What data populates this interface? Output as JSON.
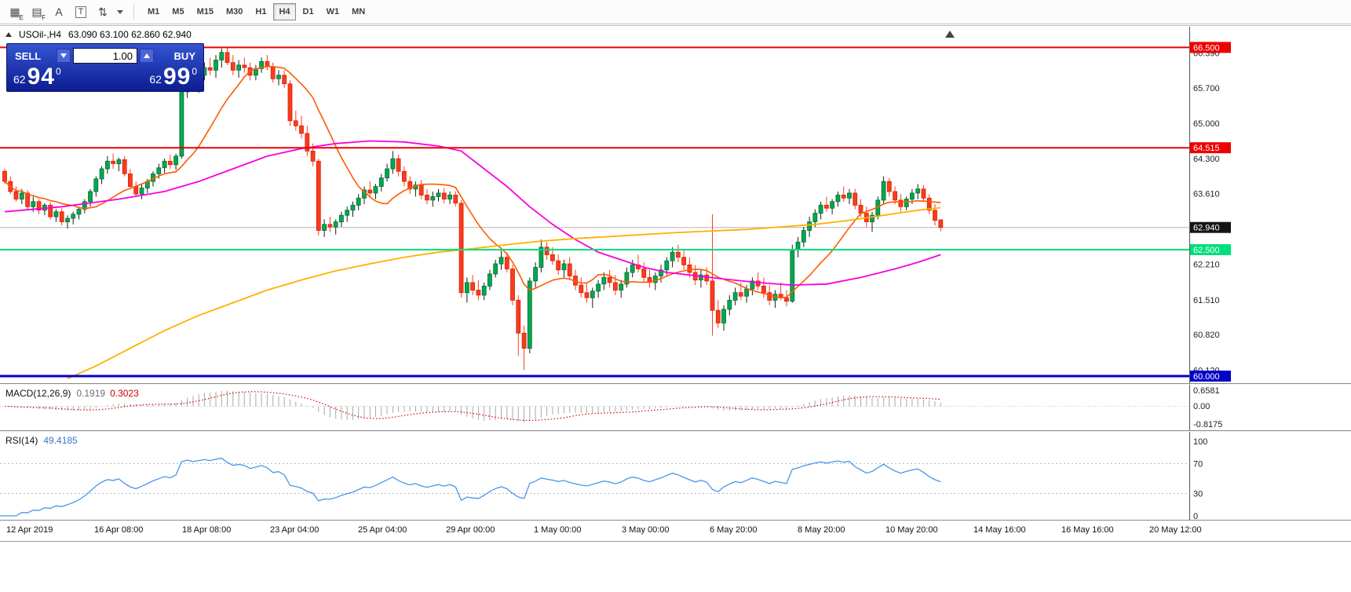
{
  "toolbar": {
    "tools": [
      {
        "glyph": "▦",
        "sub": "E"
      },
      {
        "glyph": "▤",
        "sub": "F"
      },
      {
        "glyph": "A",
        "sub": ""
      },
      {
        "glyph": "T",
        "sub": ""
      },
      {
        "glyph": "⇅",
        "sub": ""
      }
    ],
    "timeframes": [
      {
        "label": "M1"
      },
      {
        "label": "M5"
      },
      {
        "label": "M15"
      },
      {
        "label": "M30"
      },
      {
        "label": "H1"
      },
      {
        "label": "H4",
        "active": true
      },
      {
        "label": "D1"
      },
      {
        "label": "W1"
      },
      {
        "label": "MN"
      }
    ]
  },
  "chart": {
    "symbol": "USOil-,H4",
    "ohlc": "63.090 63.100 62.860 62.940",
    "trade_panel": {
      "sell_label": "SELL",
      "buy_label": "BUY",
      "volume": "1.00",
      "sell_price": {
        "small": "62",
        "big": "94",
        "sup": "0"
      },
      "buy_price": {
        "small": "62",
        "big": "99",
        "sup": "0"
      }
    }
  },
  "chart_data": {
    "type": "candlestick",
    "symbol": "USOil-",
    "timeframe": "H4",
    "style": {
      "up_fill": "#00a94f",
      "up_stroke": "#056b33",
      "up_wick": "#1e1e1e",
      "down_fill": "#fa3b1d",
      "down_stroke": "#d6230a",
      "down_wick": "#fa3b1d"
    },
    "candles": [
      [
        64.05,
        64.1,
        63.8,
        63.85
      ],
      [
        63.85,
        63.95,
        63.6,
        63.65
      ],
      [
        63.65,
        63.75,
        63.45,
        63.5
      ],
      [
        63.5,
        63.7,
        63.4,
        63.62
      ],
      [
        63.62,
        63.68,
        63.3,
        63.35
      ],
      [
        63.35,
        63.55,
        63.25,
        63.45
      ],
      [
        63.45,
        63.5,
        63.2,
        63.28
      ],
      [
        63.28,
        63.42,
        63.18,
        63.38
      ],
      [
        63.38,
        63.44,
        63.1,
        63.15
      ],
      [
        63.15,
        63.3,
        63.05,
        63.25
      ],
      [
        63.25,
        63.32,
        62.98,
        63.05
      ],
      [
        63.05,
        63.18,
        62.92,
        63.12
      ],
      [
        63.12,
        63.25,
        63,
        63.2
      ],
      [
        63.2,
        63.35,
        63.1,
        63.3
      ],
      [
        63.3,
        63.5,
        63.22,
        63.45
      ],
      [
        63.45,
        63.7,
        63.35,
        63.65
      ],
      [
        63.65,
        63.95,
        63.55,
        63.9
      ],
      [
        63.9,
        64.15,
        63.8,
        64.1
      ],
      [
        64.1,
        64.35,
        64,
        64.25
      ],
      [
        64.25,
        64.4,
        64.1,
        64.2
      ],
      [
        64.2,
        64.32,
        64.05,
        64.28
      ],
      [
        64.28,
        64.35,
        63.95,
        64
      ],
      [
        64,
        64.1,
        63.7,
        63.75
      ],
      [
        63.75,
        63.85,
        63.55,
        63.6
      ],
      [
        63.6,
        63.8,
        63.5,
        63.72
      ],
      [
        63.72,
        63.9,
        63.62,
        63.85
      ],
      [
        63.85,
        64.05,
        63.75,
        64
      ],
      [
        64,
        64.2,
        63.9,
        64.12
      ],
      [
        64.12,
        64.3,
        64.02,
        64.25
      ],
      [
        64.25,
        64.38,
        64.1,
        64.18
      ],
      [
        64.18,
        64.4,
        64.08,
        64.35
      ],
      [
        64.35,
        65.7,
        64.3,
        65.62
      ],
      [
        65.62,
        65.95,
        65.5,
        65.88
      ],
      [
        65.88,
        66.1,
        65.7,
        65.8
      ],
      [
        65.8,
        66,
        65.6,
        65.95
      ],
      [
        65.95,
        66.2,
        65.85,
        66.1
      ],
      [
        66.1,
        66.3,
        65.95,
        66.05
      ],
      [
        66.05,
        66.35,
        65.9,
        66.25
      ],
      [
        66.25,
        66.48,
        66.1,
        66.4
      ],
      [
        66.4,
        66.5,
        66.15,
        66.2
      ],
      [
        66.2,
        66.35,
        65.95,
        66.05
      ],
      [
        66.05,
        66.25,
        65.9,
        66.15
      ],
      [
        66.15,
        66.3,
        66,
        66.1
      ],
      [
        66.1,
        66.2,
        65.85,
        65.95
      ],
      [
        65.95,
        66.15,
        65.85,
        66.08
      ],
      [
        66.08,
        66.3,
        66,
        66.22
      ],
      [
        66.22,
        66.35,
        66.05,
        66.12
      ],
      [
        66.12,
        66.2,
        65.8,
        65.88
      ],
      [
        65.88,
        66.05,
        65.75,
        65.95
      ],
      [
        65.95,
        66.05,
        65.7,
        65.78
      ],
      [
        65.78,
        65.85,
        64.95,
        65.05
      ],
      [
        65.05,
        65.25,
        64.85,
        64.95
      ],
      [
        64.95,
        65.15,
        64.7,
        64.8
      ],
      [
        64.8,
        64.95,
        64.35,
        64.45
      ],
      [
        64.45,
        64.6,
        64.15,
        64.25
      ],
      [
        64.25,
        64.3,
        62.78,
        62.88
      ],
      [
        62.88,
        63.1,
        62.75,
        63
      ],
      [
        63,
        63.15,
        62.85,
        62.95
      ],
      [
        62.95,
        63.1,
        62.8,
        63.05
      ],
      [
        63.05,
        63.25,
        62.95,
        63.18
      ],
      [
        63.18,
        63.35,
        63.05,
        63.28
      ],
      [
        63.28,
        63.45,
        63.15,
        63.38
      ],
      [
        63.38,
        63.6,
        63.28,
        63.52
      ],
      [
        63.52,
        63.75,
        63.4,
        63.68
      ],
      [
        63.68,
        63.85,
        63.55,
        63.62
      ],
      [
        63.62,
        63.8,
        63.5,
        63.75
      ],
      [
        63.75,
        64,
        63.65,
        63.92
      ],
      [
        63.92,
        64.2,
        63.85,
        64.1
      ],
      [
        64.1,
        64.45,
        64,
        64.3
      ],
      [
        64.3,
        64.38,
        63.95,
        64.05
      ],
      [
        64.05,
        64.15,
        63.75,
        63.85
      ],
      [
        63.85,
        63.95,
        63.6,
        63.7
      ],
      [
        63.7,
        63.85,
        63.55,
        63.78
      ],
      [
        63.78,
        63.88,
        63.5,
        63.58
      ],
      [
        63.58,
        63.7,
        63.4,
        63.48
      ],
      [
        63.48,
        63.65,
        63.35,
        63.55
      ],
      [
        63.55,
        63.7,
        63.45,
        63.62
      ],
      [
        63.62,
        63.72,
        63.42,
        63.5
      ],
      [
        63.5,
        63.65,
        63.4,
        63.58
      ],
      [
        63.58,
        63.65,
        63.35,
        63.42
      ],
      [
        63.42,
        63.48,
        61.55,
        61.65
      ],
      [
        61.65,
        61.95,
        61.45,
        61.85
      ],
      [
        61.85,
        62,
        61.6,
        61.7
      ],
      [
        61.7,
        61.9,
        61.5,
        61.6
      ],
      [
        61.6,
        61.85,
        61.5,
        61.78
      ],
      [
        61.78,
        62.1,
        61.7,
        62.02
      ],
      [
        62.02,
        62.3,
        61.95,
        62.22
      ],
      [
        62.22,
        62.48,
        62.1,
        62.35
      ],
      [
        62.35,
        62.45,
        62.05,
        62.12
      ],
      [
        62.12,
        62.2,
        61.4,
        61.5
      ],
      [
        61.5,
        61.6,
        60.4,
        60.85
      ],
      [
        60.85,
        61,
        60.12,
        60.55
      ],
      [
        60.55,
        61.95,
        60.45,
        61.88
      ],
      [
        61.88,
        62.25,
        61.75,
        62.15
      ],
      [
        62.15,
        62.7,
        62.05,
        62.55
      ],
      [
        62.55,
        62.65,
        62.3,
        62.4
      ],
      [
        62.4,
        62.55,
        62.2,
        62.28
      ],
      [
        62.28,
        62.4,
        62,
        62.1
      ],
      [
        62.1,
        62.3,
        61.95,
        62.22
      ],
      [
        62.22,
        62.35,
        61.9,
        61.98
      ],
      [
        61.98,
        62.1,
        61.7,
        61.8
      ],
      [
        61.8,
        61.95,
        61.55,
        61.65
      ],
      [
        61.65,
        61.85,
        61.45,
        61.55
      ],
      [
        61.55,
        61.75,
        61.35,
        61.68
      ],
      [
        61.68,
        61.9,
        61.55,
        61.82
      ],
      [
        61.82,
        62.05,
        61.7,
        61.95
      ],
      [
        61.95,
        62.1,
        61.75,
        61.85
      ],
      [
        61.85,
        62,
        61.6,
        61.7
      ],
      [
        61.7,
        61.9,
        61.55,
        61.82
      ],
      [
        61.82,
        62.15,
        61.75,
        62.05
      ],
      [
        62.05,
        62.3,
        61.95,
        62.2
      ],
      [
        62.2,
        62.4,
        62.05,
        62.12
      ],
      [
        62.12,
        62.25,
        61.85,
        61.95
      ],
      [
        61.95,
        62.1,
        61.75,
        61.85
      ],
      [
        61.85,
        62.05,
        61.7,
        61.98
      ],
      [
        61.98,
        62.2,
        61.85,
        62.1
      ],
      [
        62.1,
        62.35,
        62,
        62.28
      ],
      [
        62.28,
        62.55,
        62.15,
        62.45
      ],
      [
        62.45,
        62.6,
        62.25,
        62.35
      ],
      [
        62.35,
        62.5,
        62.1,
        62.2
      ],
      [
        62.2,
        62.35,
        61.95,
        62.05
      ],
      [
        62.05,
        62.2,
        61.8,
        61.9
      ],
      [
        61.9,
        62.1,
        61.75,
        62
      ],
      [
        62,
        62.15,
        61.8,
        61.88
      ],
      [
        61.88,
        63.2,
        60.8,
        61.3
      ],
      [
        61.3,
        61.5,
        60.95,
        61.05
      ],
      [
        61.05,
        61.4,
        60.9,
        61.32
      ],
      [
        61.32,
        61.6,
        61.2,
        61.5
      ],
      [
        61.5,
        61.75,
        61.4,
        61.65
      ],
      [
        61.65,
        61.85,
        61.5,
        61.58
      ],
      [
        61.58,
        61.8,
        61.45,
        61.72
      ],
      [
        61.72,
        61.95,
        61.6,
        61.88
      ],
      [
        61.88,
        62.05,
        61.7,
        61.78
      ],
      [
        61.78,
        61.95,
        61.55,
        61.65
      ],
      [
        61.65,
        61.8,
        61.4,
        61.5
      ],
      [
        61.5,
        61.7,
        61.35,
        61.62
      ],
      [
        61.62,
        61.85,
        61.5,
        61.55
      ],
      [
        61.55,
        61.7,
        61.38,
        61.48
      ],
      [
        61.48,
        62.6,
        61.45,
        62.5
      ],
      [
        62.5,
        62.75,
        62.35,
        62.65
      ],
      [
        62.65,
        62.95,
        62.55,
        62.88
      ],
      [
        62.88,
        63.15,
        62.75,
        63.05
      ],
      [
        63.05,
        63.3,
        62.95,
        63.22
      ],
      [
        63.22,
        63.45,
        63.1,
        63.38
      ],
      [
        63.38,
        63.55,
        63.25,
        63.32
      ],
      [
        63.32,
        63.5,
        63.2,
        63.45
      ],
      [
        63.45,
        63.65,
        63.35,
        63.58
      ],
      [
        63.58,
        63.75,
        63.45,
        63.52
      ],
      [
        63.52,
        63.7,
        63.4,
        63.62
      ],
      [
        63.62,
        63.7,
        63.3,
        63.38
      ],
      [
        63.38,
        63.5,
        63.15,
        63.22
      ],
      [
        63.22,
        63.35,
        62.95,
        63.05
      ],
      [
        63.05,
        63.25,
        62.85,
        63.18
      ],
      [
        63.18,
        63.55,
        63.1,
        63.48
      ],
      [
        63.48,
        63.95,
        63.4,
        63.85
      ],
      [
        63.85,
        63.92,
        63.55,
        63.65
      ],
      [
        63.65,
        63.75,
        63.4,
        63.48
      ],
      [
        63.48,
        63.6,
        63.25,
        63.35
      ],
      [
        63.35,
        63.55,
        63.28,
        63.5
      ],
      [
        63.5,
        63.7,
        63.4,
        63.62
      ],
      [
        63.62,
        63.8,
        63.5,
        63.7
      ],
      [
        63.7,
        63.78,
        63.45,
        63.52
      ],
      [
        63.52,
        63.6,
        63.2,
        63.28
      ],
      [
        63.28,
        63.4,
        62.98,
        63.08
      ],
      [
        63.09,
        63.1,
        62.86,
        62.94
      ]
    ],
    "ma": {
      "fast": {
        "period": 13,
        "color": "#ff5a00"
      },
      "mid": {
        "color": "#f800e0",
        "points": [
          [
            0,
            63.25
          ],
          [
            10,
            63.35
          ],
          [
            20,
            63.5
          ],
          [
            28,
            63.65
          ],
          [
            34,
            63.85
          ],
          [
            40,
            64.1
          ],
          [
            46,
            64.35
          ],
          [
            52,
            64.5
          ],
          [
            58,
            64.6
          ],
          [
            64,
            64.65
          ],
          [
            70,
            64.63
          ],
          [
            76,
            64.55
          ],
          [
            80,
            64.45
          ],
          [
            84,
            64.1
          ],
          [
            88,
            63.75
          ],
          [
            92,
            63.35
          ],
          [
            96,
            63.0
          ],
          [
            100,
            62.7
          ],
          [
            104,
            62.45
          ],
          [
            108,
            62.3
          ],
          [
            112,
            62.15
          ],
          [
            116,
            62.05
          ],
          [
            120,
            62.0
          ],
          [
            126,
            61.92
          ],
          [
            132,
            61.85
          ],
          [
            138,
            61.8
          ],
          [
            144,
            61.82
          ],
          [
            150,
            61.95
          ],
          [
            156,
            62.12
          ],
          [
            160,
            62.25
          ],
          [
            164,
            62.4
          ]
        ]
      },
      "slow": {
        "color": "#ffb000",
        "points": [
          [
            11,
            59.95
          ],
          [
            16,
            60.2
          ],
          [
            22,
            60.55
          ],
          [
            28,
            60.9
          ],
          [
            34,
            61.2
          ],
          [
            40,
            61.45
          ],
          [
            46,
            61.7
          ],
          [
            52,
            61.9
          ],
          [
            58,
            62.08
          ],
          [
            64,
            62.22
          ],
          [
            70,
            62.35
          ],
          [
            76,
            62.45
          ],
          [
            82,
            62.52
          ],
          [
            88,
            62.6
          ],
          [
            94,
            62.67
          ],
          [
            100,
            62.72
          ],
          [
            106,
            62.76
          ],
          [
            112,
            62.8
          ],
          [
            118,
            62.84
          ],
          [
            124,
            62.87
          ],
          [
            130,
            62.9
          ],
          [
            136,
            62.95
          ],
          [
            142,
            63.0
          ],
          [
            148,
            63.08
          ],
          [
            154,
            63.18
          ],
          [
            160,
            63.28
          ],
          [
            164,
            63.33
          ]
        ]
      }
    },
    "price_axis": {
      "grid": [
        {
          "price": 66.39,
          "label": "66.390"
        },
        {
          "price": 65.7,
          "label": "65.700"
        },
        {
          "price": 65.0,
          "label": "65.000"
        },
        {
          "price": 64.3,
          "label": "64.300"
        },
        {
          "price": 63.61,
          "label": "63.610"
        },
        {
          "price": 62.21,
          "label": "62.210"
        },
        {
          "price": 61.51,
          "label": "61.510"
        },
        {
          "price": 60.82,
          "label": "60.820"
        },
        {
          "price": 60.12,
          "label": "60.120"
        }
      ],
      "levels": [
        {
          "price": 66.5,
          "label": "66.500",
          "color": "#ee0000",
          "width": 2
        },
        {
          "price": 64.515,
          "label": "64.515",
          "color": "#ee0000",
          "width": 2
        },
        {
          "price": 62.5,
          "label": "62.500",
          "color": "#00df7d",
          "width": 2
        },
        {
          "price": 60.0,
          "label": "60.000",
          "color": "#0202c8",
          "width": 3
        }
      ],
      "current": {
        "price": 62.94,
        "label": "62.940"
      }
    },
    "time_axis": [
      "12 Apr 2019",
      "16 Apr 08:00",
      "18 Apr 08:00",
      "23 Apr 04:00",
      "25 Apr 04:00",
      "29 Apr 00:00",
      "1 May 00:00",
      "3 May 00:00",
      "6 May 20:00",
      "8 May 20:00",
      "10 May 20:00",
      "14 May 16:00",
      "16 May 16:00",
      "20 May 12:00"
    ],
    "macd": {
      "label": "MACD(12,26,9)",
      "value_main": "0.1919",
      "value_signal": "0.3023",
      "axis_labels": [
        "0.6581",
        "0.00",
        "-0.8175"
      ],
      "histogram_color": "#a8a8a8",
      "signal_color": "#e00000"
    },
    "rsi": {
      "label": "RSI(14)",
      "value": "49.4185",
      "period": 14,
      "axis_labels": [
        "100",
        "70",
        "30",
        "0"
      ],
      "levels": [
        70,
        30
      ],
      "line_color": "#4896ec"
    }
  }
}
